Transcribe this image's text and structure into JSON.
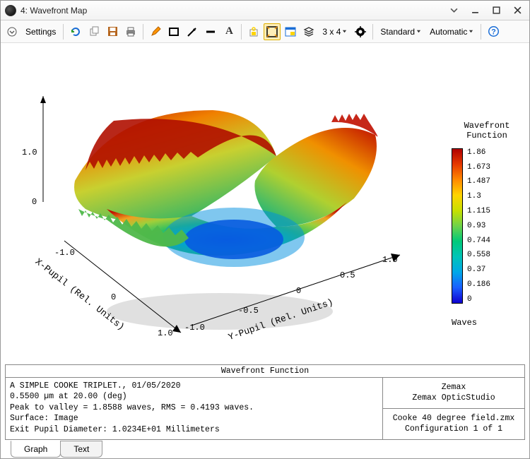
{
  "window": {
    "title": "4: Wavefront Map"
  },
  "toolbar": {
    "settings": "Settings",
    "grid": "3 x 4",
    "standard": "Standard",
    "automatic": "Automatic"
  },
  "chart": {
    "type": "3d-surface",
    "legend_title_1": "Wavefront",
    "legend_title_2": "Function",
    "legend_unit": "Waves",
    "z_axis": {
      "ticks": [
        "1.0",
        "0"
      ]
    },
    "x_axis": {
      "label": "X-Pupil (Rel. Units)",
      "ticks": [
        "-1.0",
        "0",
        "1.0"
      ]
    },
    "y_axis": {
      "label": "Y-Pupil (Rel. Units)",
      "ticks": [
        "-1.0",
        "-0.5",
        "0",
        "0.5",
        "1.0"
      ]
    },
    "colorbar": {
      "values": [
        "1.86",
        "1.673",
        "1.487",
        "1.3",
        "1.115",
        "0.93",
        "0.744",
        "0.558",
        "0.37",
        "0.186",
        "0"
      ],
      "gradient_stops": [
        {
          "pct": 0,
          "color": "#b00000"
        },
        {
          "pct": 10,
          "color": "#e63a00"
        },
        {
          "pct": 20,
          "color": "#ff8a00"
        },
        {
          "pct": 30,
          "color": "#ffd400"
        },
        {
          "pct": 40,
          "color": "#c8e000"
        },
        {
          "pct": 50,
          "color": "#6fd34a"
        },
        {
          "pct": 60,
          "color": "#00c97a"
        },
        {
          "pct": 70,
          "color": "#00c4b8"
        },
        {
          "pct": 80,
          "color": "#00a8e8"
        },
        {
          "pct": 90,
          "color": "#1a5fff"
        },
        {
          "pct": 100,
          "color": "#1000d0"
        }
      ]
    }
  },
  "info": {
    "title": "Wavefront Function",
    "line1": "A SIMPLE COOKE TRIPLET., 01/05/2020",
    "line2": "0.5500 µm at 20.00 (deg)",
    "line3": "Peak to valley = 1.8588 waves, RMS = 0.4193 waves.",
    "line4": "Surface: Image",
    "line5": "Exit Pupil Diameter: 1.0234E+01 Millimeters",
    "vendor1": "Zemax",
    "vendor2": "Zemax OpticStudio",
    "file": "Cooke 40 degree field.zmx",
    "config": "Configuration 1 of 1"
  },
  "tabs": {
    "graph": "Graph",
    "text": "Text"
  },
  "colors": {
    "pen_orange": "#ff9500",
    "icon_blue": "#1a6dd6",
    "icon_green": "#2a9a2a",
    "icon_yellow": "#ffd400",
    "icon_brown": "#b5651d"
  }
}
